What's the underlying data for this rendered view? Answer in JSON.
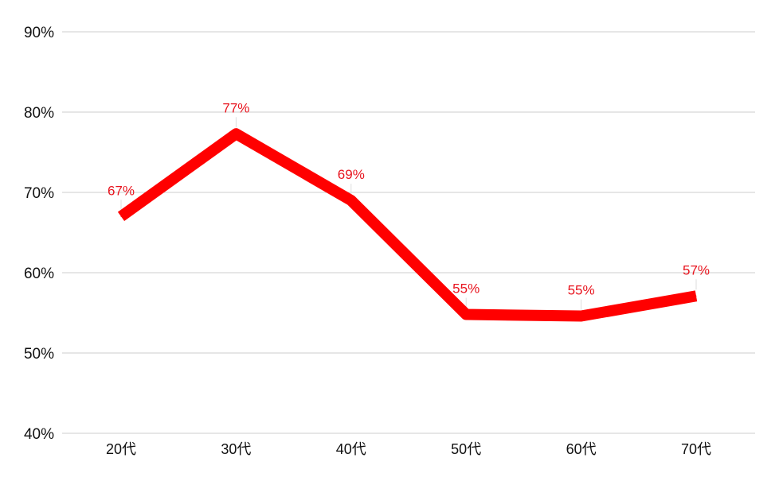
{
  "chart_data": {
    "type": "line",
    "title": "",
    "xlabel": "",
    "ylabel": "",
    "categories": [
      "20代",
      "30代",
      "40代",
      "50代",
      "60代",
      "70代"
    ],
    "series": [
      {
        "values": [
          67,
          77.3,
          69,
          54.8,
          54.6,
          57.1
        ],
        "data_labels": [
          "67%",
          "77%",
          "69%",
          "55%",
          "55%",
          "57%"
        ],
        "color": "#ff0000"
      }
    ],
    "ylim": [
      40,
      90
    ],
    "yticks": [
      40,
      50,
      60,
      70,
      80,
      90
    ],
    "ytick_labels": [
      "40%",
      "50%",
      "60%",
      "70%",
      "80%",
      "90%"
    ],
    "grid": "horizontal",
    "legend": "none",
    "data_label_color": "#e8141e"
  }
}
